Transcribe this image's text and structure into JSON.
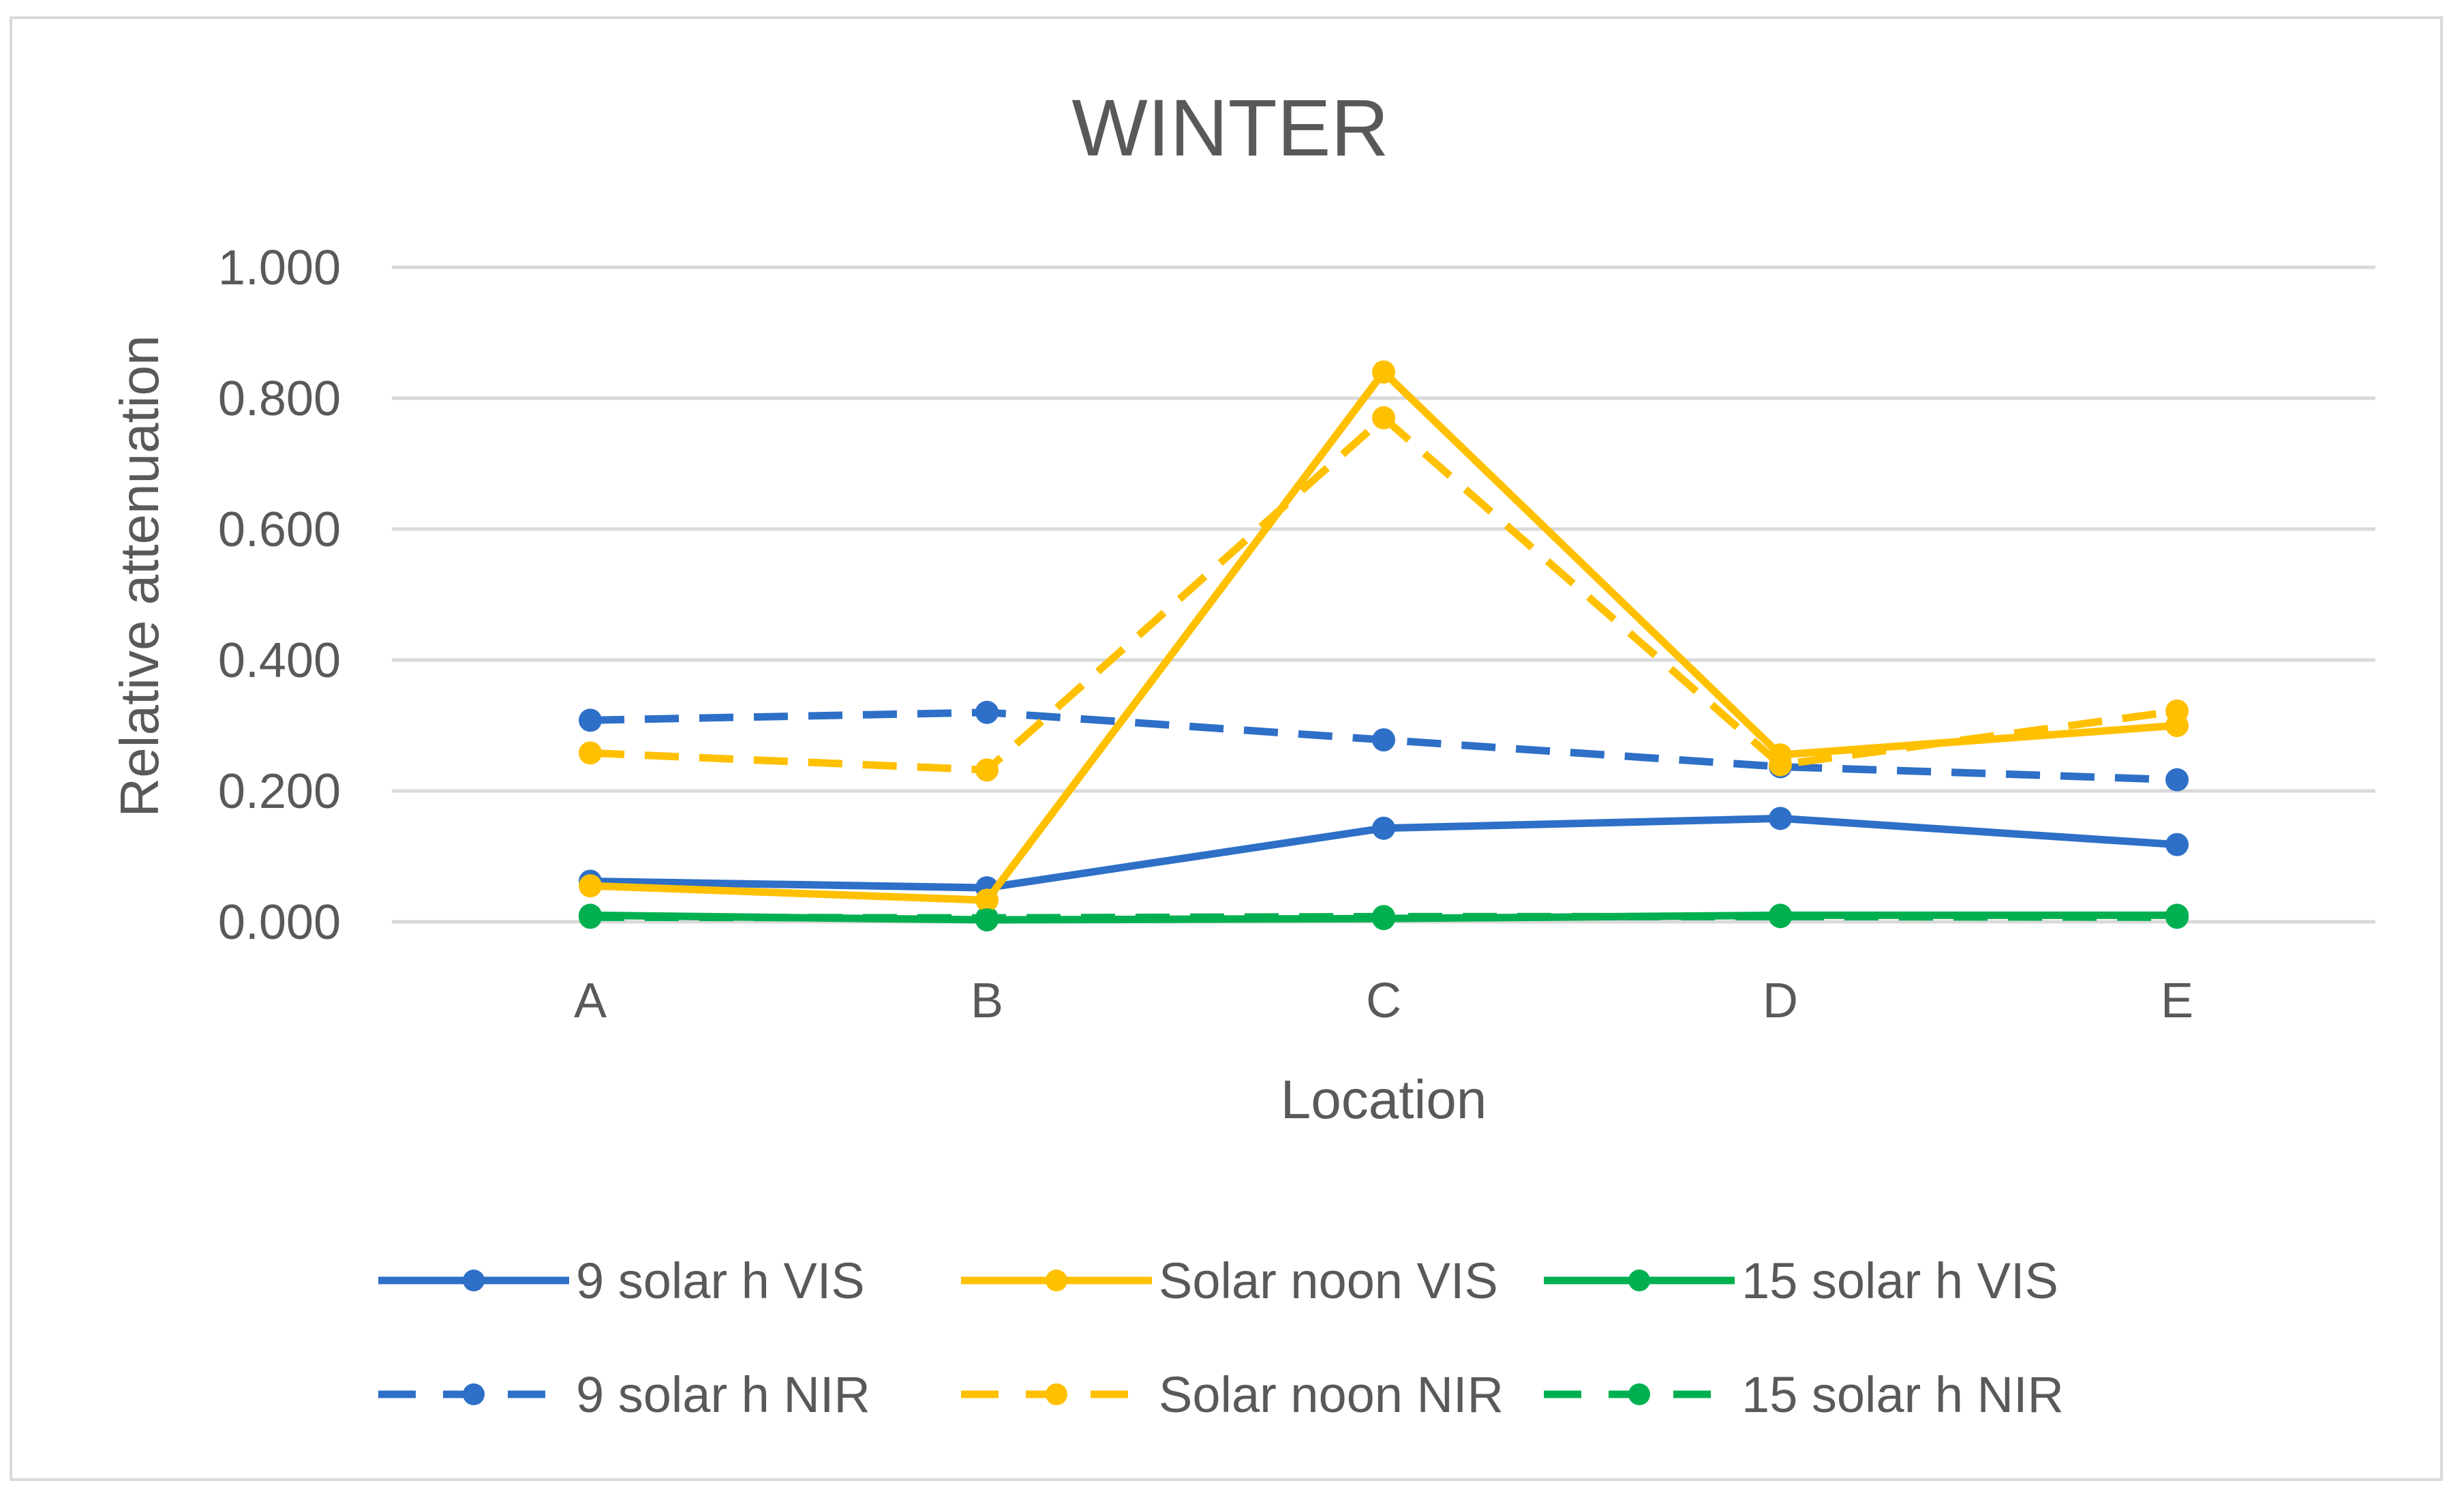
{
  "chart_data": {
    "type": "line",
    "title": "WINTER",
    "xlabel": "Location",
    "ylabel": "Relative attenuation",
    "categories": [
      "A",
      "B",
      "C",
      "D",
      "E"
    ],
    "ylim": [
      0,
      1
    ],
    "yticks": [
      "0.000",
      "0.200",
      "0.400",
      "0.600",
      "0.800",
      "1.000"
    ],
    "grid": true,
    "legend_position": "bottom",
    "series": [
      {
        "name": "9 solar h VIS",
        "color": "#2e6fc7",
        "dash": "solid",
        "values": [
          0.062,
          0.052,
          0.143,
          0.158,
          0.118
        ]
      },
      {
        "name": "Solar noon VIS",
        "color": "#ffc000",
        "dash": "solid",
        "values": [
          0.055,
          0.033,
          0.84,
          0.255,
          0.3
        ]
      },
      {
        "name": "15 solar h VIS",
        "color": "#00b050",
        "dash": "solid",
        "values": [
          0.01,
          0.003,
          0.005,
          0.01,
          0.01
        ]
      },
      {
        "name": "9 solar h NIR",
        "color": "#2e6fc7",
        "dash": "dashed",
        "values": [
          0.308,
          0.32,
          0.278,
          0.237,
          0.217
        ]
      },
      {
        "name": "Solar noon NIR",
        "color": "#ffc000",
        "dash": "dashed",
        "values": [
          0.258,
          0.232,
          0.77,
          0.24,
          0.322
        ]
      },
      {
        "name": "15 solar h NIR",
        "color": "#00b050",
        "dash": "dashed",
        "values": [
          0.007,
          0.006,
          0.008,
          0.008,
          0.007
        ]
      }
    ]
  }
}
